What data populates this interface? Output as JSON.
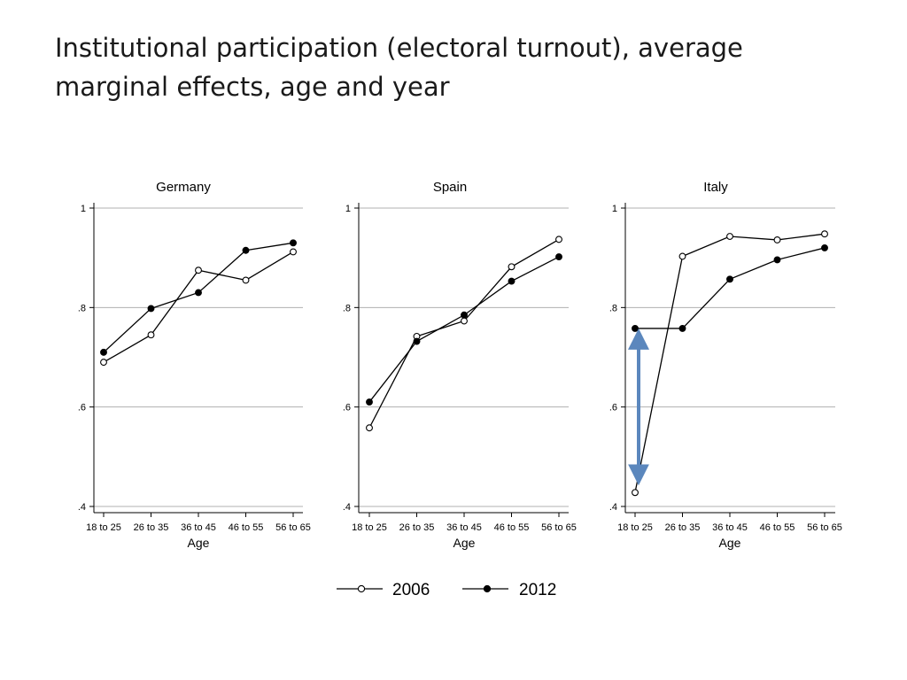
{
  "slide": {
    "title": "Institutional participation (electoral turnout), average marginal effects, age and year"
  },
  "chart_data": [
    {
      "type": "line",
      "title": "Germany",
      "categories": [
        "18 to 25",
        "26 to 35",
        "36 to 45",
        "46 to 55",
        "56 to 65"
      ],
      "xlabel": "Age",
      "ylabel": "",
      "ylim": [
        0.4,
        1.0
      ],
      "yticks": [
        ".4",
        ".6",
        ".8",
        "1"
      ],
      "grid": true,
      "series": [
        {
          "name": "2006",
          "marker": "hollow-circle",
          "values": [
            0.69,
            0.745,
            0.875,
            0.855,
            0.912
          ]
        },
        {
          "name": "2012",
          "marker": "filled-circle",
          "values": [
            0.71,
            0.798,
            0.83,
            0.915,
            0.93
          ]
        }
      ]
    },
    {
      "type": "line",
      "title": "Spain",
      "categories": [
        "18 to 25",
        "26 to 35",
        "36 to 45",
        "46 to 55",
        "56 to 65"
      ],
      "xlabel": "Age",
      "ylabel": "",
      "ylim": [
        0.4,
        1.0
      ],
      "yticks": [
        ".4",
        ".6",
        ".8",
        "1"
      ],
      "grid": true,
      "series": [
        {
          "name": "2006",
          "marker": "hollow-circle",
          "values": [
            0.558,
            0.742,
            0.773,
            0.882,
            0.937
          ]
        },
        {
          "name": "2012",
          "marker": "filled-circle",
          "values": [
            0.61,
            0.732,
            0.785,
            0.853,
            0.902
          ]
        }
      ]
    },
    {
      "type": "line",
      "title": "Italy",
      "categories": [
        "18 to 25",
        "26 to 35",
        "36 to 45",
        "46 to 55",
        "56 to 65"
      ],
      "xlabel": "Age",
      "ylabel": "",
      "ylim": [
        0.4,
        1.0
      ],
      "yticks": [
        ".4",
        ".6",
        ".8",
        "1"
      ],
      "grid": true,
      "series": [
        {
          "name": "2006",
          "marker": "hollow-circle",
          "values": [
            0.428,
            0.903,
            0.943,
            0.936,
            0.948
          ]
        },
        {
          "name": "2012",
          "marker": "filled-circle",
          "values": [
            0.758,
            0.758,
            0.857,
            0.896,
            0.92
          ]
        }
      ],
      "annotation": {
        "type": "double-arrow",
        "category": "18 to 25",
        "from": 0.758,
        "to": 0.428,
        "color": "#5b87bd"
      }
    }
  ],
  "legend": {
    "position": "bottom-center",
    "items": [
      {
        "label": "2006",
        "marker": "hollow-circle"
      },
      {
        "label": "2012",
        "marker": "filled-circle"
      }
    ]
  }
}
